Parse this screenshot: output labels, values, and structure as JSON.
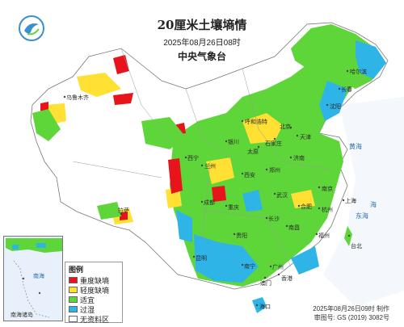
{
  "header": {
    "title": "20厘米土壤墒情",
    "date": "2025年08月26日08时",
    "org": "中央气象台"
  },
  "legend": {
    "title": "图例",
    "items": [
      {
        "label": "重度缺墒",
        "color": "#e8141c"
      },
      {
        "label": "轻度缺墒",
        "color": "#ffe033"
      },
      {
        "label": "适宜",
        "color": "#5ed63a"
      },
      {
        "label": "过湿",
        "color": "#2fb4e8"
      },
      {
        "label": "无资料区",
        "color": "#ffffff"
      }
    ]
  },
  "inset": {
    "label": "南海诸岛",
    "sea_label": "南海"
  },
  "footer": {
    "made": "2025年08月26日09时 制作",
    "review": "审图号: GS (2019) 3082号"
  },
  "seas": [
    "黄海",
    "东海",
    "海"
  ],
  "places": [
    {
      "name": "哈尔滨"
    },
    {
      "name": "长春"
    },
    {
      "name": "沈阳"
    },
    {
      "name": "北京"
    },
    {
      "name": "天津"
    },
    {
      "name": "石家庄"
    },
    {
      "name": "太原"
    },
    {
      "name": "济南"
    },
    {
      "name": "郑州"
    },
    {
      "name": "西安"
    },
    {
      "name": "兰州"
    },
    {
      "name": "银川"
    },
    {
      "name": "西宁"
    },
    {
      "name": "乌鲁木齐"
    },
    {
      "name": "拉萨"
    },
    {
      "name": "成都"
    },
    {
      "name": "重庆"
    },
    {
      "name": "武汉"
    },
    {
      "name": "南京"
    },
    {
      "name": "上海"
    },
    {
      "name": "杭州"
    },
    {
      "name": "合肥"
    },
    {
      "name": "长沙"
    },
    {
      "name": "南昌"
    },
    {
      "name": "福州"
    },
    {
      "name": "台北"
    },
    {
      "name": "贵阳"
    },
    {
      "name": "昆明"
    },
    {
      "name": "南宁"
    },
    {
      "name": "广州"
    },
    {
      "name": "香港"
    },
    {
      "name": "澳门"
    },
    {
      "name": "海口"
    },
    {
      "name": "呼和浩特"
    }
  ]
}
